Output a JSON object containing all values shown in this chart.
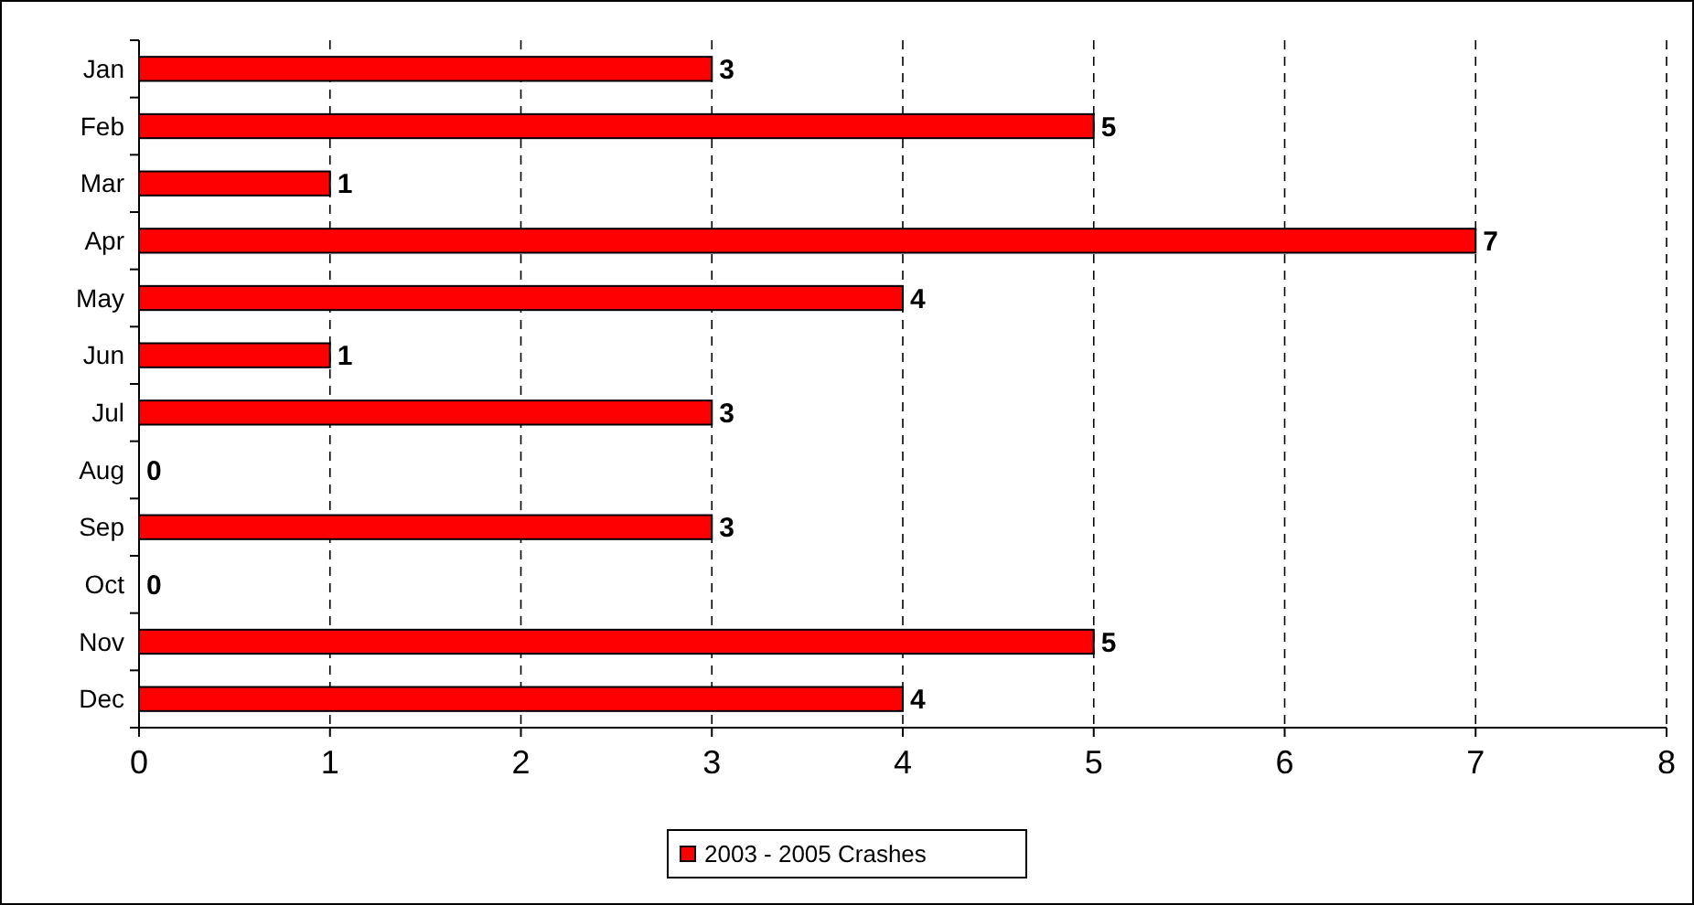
{
  "chart_data": {
    "type": "bar",
    "orientation": "horizontal",
    "categories": [
      "Jan",
      "Feb",
      "Mar",
      "Apr",
      "May",
      "Jun",
      "Jul",
      "Aug",
      "Sep",
      "Oct",
      "Nov",
      "Dec"
    ],
    "series": [
      {
        "name": "2003 - 2005 Crashes",
        "color": "#ff0000",
        "values": [
          3,
          5,
          1,
          7,
          4,
          1,
          3,
          0,
          3,
          0,
          5,
          4
        ]
      }
    ],
    "xlim": [
      0,
      8
    ],
    "xticks": [
      0,
      1,
      2,
      3,
      4,
      5,
      6,
      7,
      8
    ],
    "grid": "x",
    "data_labels": true,
    "legend": "bottom"
  }
}
